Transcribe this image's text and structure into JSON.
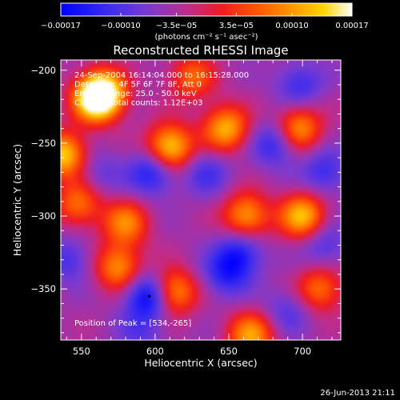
{
  "chart_data": {
    "type": "heatmap",
    "title": "Reconstructed RHESSI Image",
    "xlabel": "Heliocentric X (arcsec)",
    "ylabel": "Heliocentric Y (arcsec)",
    "xlim": [
      536,
      726
    ],
    "ylim": [
      -385,
      -193
    ],
    "x_ticks": [
      550,
      600,
      650,
      700
    ],
    "x_tick_labels": [
      "550",
      "600",
      "650",
      "700"
    ],
    "y_ticks": [
      -200,
      -250,
      -300,
      -350
    ],
    "y_tick_labels": [
      "−200",
      "−250",
      "−300",
      "−350"
    ],
    "colorbar": {
      "min": -0.00017,
      "max": 0.00017,
      "ticks": [
        -0.00017,
        -0.0001,
        -3.5e-05,
        3.5e-05,
        0.0001,
        0.00017
      ],
      "tick_labels": [
        "−0.00017",
        "−0.00010",
        "−3.5e−05",
        "3.5e−05",
        "0.00010",
        "0.00017"
      ],
      "unit_label": "(photons cm⁻² s⁻¹ asec⁻²)",
      "colormap": [
        "#0000ff",
        "#6a3cd8",
        "#c83278",
        "#ff2000",
        "#ff8800",
        "#ffd800",
        "#ffffff"
      ]
    },
    "info_lines": [
      "24-Sep-2004 16:14:04.000 to 16:15:28.000",
      "Detectors: 4F 5F 6F 7F 8F, Att 0",
      "Energy Range: 25.0 - 50.0 keV",
      "Clean     Total counts: 1.12E+03"
    ],
    "peak_label": "Position of Peak = [534,-265]",
    "peak_position": [
      534,
      -265
    ],
    "approx_features": [
      {
        "x": 560,
        "y": -220,
        "value": 0.00017
      },
      {
        "x": 610,
        "y": -253,
        "value": 0.00016
      },
      {
        "x": 538,
        "y": -258,
        "value": 0.00015
      },
      {
        "x": 565,
        "y": -215,
        "value": 0.00013
      },
      {
        "x": 648,
        "y": -240,
        "value": 0.00013
      },
      {
        "x": 697,
        "y": -240,
        "value": 0.00012
      },
      {
        "x": 700,
        "y": -300,
        "value": 0.00014
      },
      {
        "x": 662,
        "y": -300,
        "value": 0.00012
      },
      {
        "x": 580,
        "y": -305,
        "value": 0.0001
      },
      {
        "x": 612,
        "y": -352,
        "value": 0.00013
      },
      {
        "x": 575,
        "y": -335,
        "value": 0.00011
      },
      {
        "x": 712,
        "y": -350,
        "value": 9e-05
      },
      {
        "x": 665,
        "y": -382,
        "value": 0.00012
      },
      {
        "x": 548,
        "y": -292,
        "value": 9e-05
      },
      {
        "x": 625,
        "y": -205,
        "value": 8e-05
      },
      {
        "x": 596,
        "y": -355,
        "value": -0.00017
      },
      {
        "x": 598,
        "y": -270,
        "value": -0.00013
      },
      {
        "x": 682,
        "y": -250,
        "value": -0.00012
      },
      {
        "x": 658,
        "y": -325,
        "value": -0.00012
      },
      {
        "x": 648,
        "y": -340,
        "value": -0.00011
      },
      {
        "x": 698,
        "y": -210,
        "value": -0.0001
      },
      {
        "x": 715,
        "y": -270,
        "value": -0.0001
      },
      {
        "x": 542,
        "y": -330,
        "value": -9e-05
      },
      {
        "x": 635,
        "y": -270,
        "value": -9e-05
      },
      {
        "x": 715,
        "y": -320,
        "value": -9e-05
      },
      {
        "x": 690,
        "y": -365,
        "value": -8e-05
      },
      {
        "x": 562,
        "y": -270,
        "value": -7e-05
      },
      {
        "x": 590,
        "y": -380,
        "value": -7e-05
      }
    ]
  },
  "footer": {
    "timestamp": "26-Jun-2013 21:11"
  }
}
